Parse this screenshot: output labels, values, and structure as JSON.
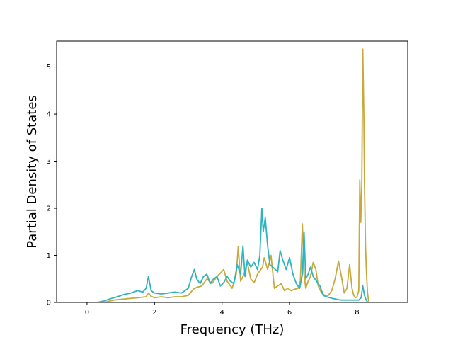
{
  "chart_data": {
    "type": "line",
    "title": "",
    "xlabel": "Frequency (THz)",
    "ylabel": "Partial Density of States",
    "xlim": [
      -0.9,
      9.5
    ],
    "ylim": [
      0,
      5.55
    ],
    "x_ticks": [
      0,
      2,
      4,
      6,
      8
    ],
    "x_tick_labels": [
      "0",
      "2",
      "4",
      "6",
      "8"
    ],
    "y_ticks": [
      0,
      1,
      2,
      3,
      4,
      5
    ],
    "y_tick_labels": [
      "0",
      "1",
      "2",
      "3",
      "4",
      "5"
    ],
    "grid": false,
    "legend": "none",
    "series": [
      {
        "color": "#c8aa3c",
        "x": [
          -0.8,
          0.0,
          0.5,
          0.8,
          1.2,
          1.5,
          1.75,
          1.82,
          1.9,
          2.0,
          2.2,
          2.4,
          2.6,
          2.8,
          3.0,
          3.15,
          3.25,
          3.4,
          3.55,
          3.7,
          3.85,
          3.95,
          4.05,
          4.15,
          4.3,
          4.42,
          4.48,
          4.55,
          4.65,
          4.75,
          4.85,
          4.95,
          5.05,
          5.15,
          5.2,
          5.25,
          5.35,
          5.45,
          5.55,
          5.65,
          5.75,
          5.85,
          5.95,
          6.05,
          6.15,
          6.25,
          6.32,
          6.38,
          6.43,
          6.48,
          6.55,
          6.62,
          6.7,
          6.78,
          6.85,
          6.95,
          7.05,
          7.15,
          7.25,
          7.35,
          7.45,
          7.55,
          7.62,
          7.7,
          7.78,
          7.85,
          7.9,
          7.95,
          8.0,
          8.05,
          8.08,
          8.11,
          8.14,
          8.17,
          8.2,
          8.22,
          8.25,
          8.28,
          8.31,
          8.35,
          8.4,
          9.2
        ],
        "values": [
          0.0,
          0.0,
          0.0,
          0.05,
          0.08,
          0.1,
          0.12,
          0.2,
          0.13,
          0.1,
          0.12,
          0.1,
          0.12,
          0.12,
          0.15,
          0.28,
          0.32,
          0.35,
          0.5,
          0.4,
          0.55,
          0.62,
          0.7,
          0.45,
          0.3,
          0.6,
          1.18,
          0.45,
          0.6,
          0.85,
          0.5,
          0.42,
          0.6,
          0.7,
          0.75,
          0.95,
          0.7,
          1.0,
          0.3,
          0.35,
          0.4,
          0.25,
          0.3,
          0.25,
          0.28,
          0.3,
          0.45,
          1.67,
          0.6,
          0.3,
          0.45,
          0.55,
          0.85,
          0.7,
          0.35,
          0.2,
          0.15,
          0.15,
          0.25,
          0.5,
          0.88,
          0.5,
          0.2,
          0.3,
          0.8,
          0.3,
          0.15,
          0.1,
          0.12,
          0.25,
          2.6,
          1.7,
          2.5,
          5.38,
          4.0,
          2.5,
          1.2,
          0.6,
          0.2,
          0.0,
          0.0,
          0.0
        ]
      },
      {
        "color": "#2eb4c0",
        "x": [
          -0.8,
          0.0,
          0.3,
          0.5,
          0.7,
          0.9,
          1.1,
          1.3,
          1.5,
          1.65,
          1.75,
          1.82,
          1.9,
          2.0,
          2.2,
          2.4,
          2.6,
          2.8,
          3.0,
          3.1,
          3.18,
          3.25,
          3.35,
          3.45,
          3.55,
          3.65,
          3.75,
          3.85,
          3.95,
          4.05,
          4.15,
          4.25,
          4.35,
          4.45,
          4.55,
          4.62,
          4.68,
          4.75,
          4.85,
          4.95,
          5.05,
          5.12,
          5.18,
          5.22,
          5.28,
          5.35,
          5.42,
          5.5,
          5.58,
          5.65,
          5.72,
          5.8,
          5.9,
          6.0,
          6.1,
          6.2,
          6.3,
          6.38,
          6.43,
          6.48,
          6.55,
          6.62,
          6.7,
          6.8,
          6.9,
          7.0,
          7.1,
          7.2,
          7.3,
          7.5,
          7.7,
          7.9,
          8.05,
          8.12,
          8.17,
          8.22,
          8.27,
          8.32,
          8.4,
          9.2
        ],
        "values": [
          0.0,
          0.0,
          0.0,
          0.03,
          0.08,
          0.12,
          0.17,
          0.2,
          0.25,
          0.22,
          0.3,
          0.55,
          0.25,
          0.2,
          0.18,
          0.2,
          0.22,
          0.2,
          0.3,
          0.55,
          0.7,
          0.5,
          0.4,
          0.55,
          0.6,
          0.4,
          0.5,
          0.55,
          0.35,
          0.42,
          0.55,
          0.45,
          0.4,
          0.8,
          0.6,
          1.2,
          0.55,
          0.9,
          0.75,
          0.85,
          0.7,
          1.0,
          2.0,
          1.5,
          1.8,
          1.2,
          0.8,
          0.75,
          0.7,
          0.65,
          1.1,
          0.9,
          0.7,
          0.95,
          0.6,
          0.4,
          0.3,
          0.6,
          1.5,
          0.5,
          0.6,
          0.75,
          0.55,
          0.45,
          0.35,
          0.15,
          0.12,
          0.1,
          0.08,
          0.05,
          0.05,
          0.05,
          0.05,
          0.1,
          0.35,
          0.15,
          0.05,
          0.0,
          0.0,
          0.0
        ]
      }
    ]
  }
}
